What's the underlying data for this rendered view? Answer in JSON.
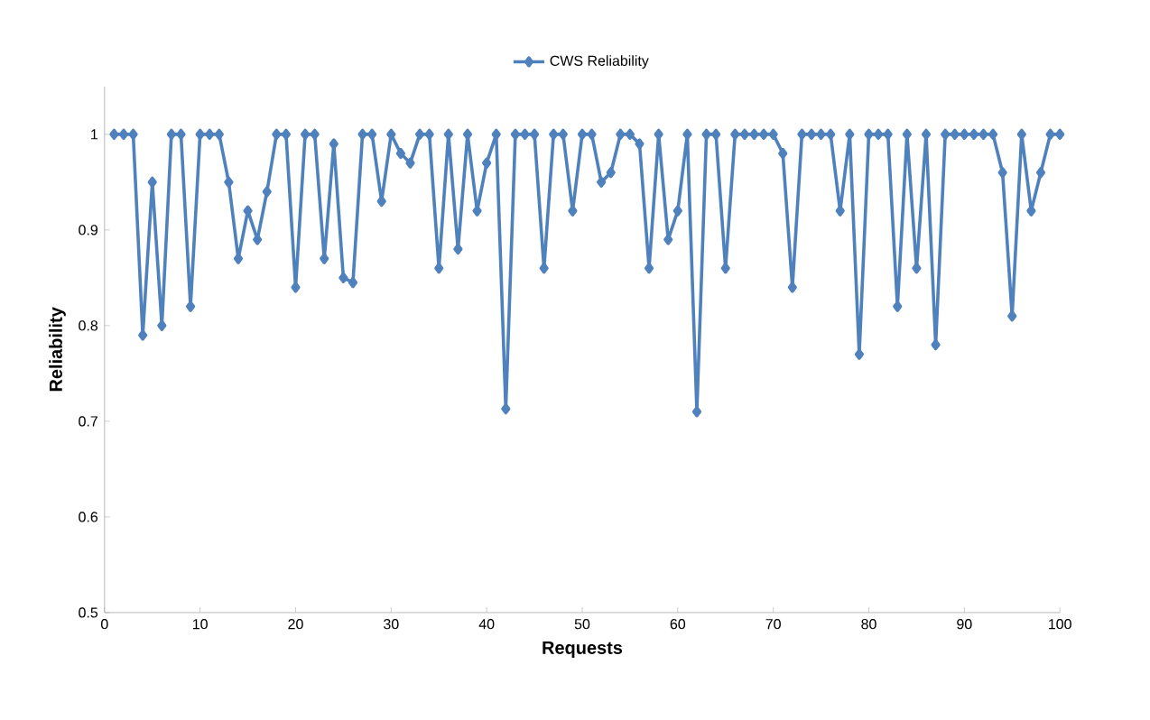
{
  "chart_data": {
    "type": "line",
    "xlabel": "Requests",
    "ylabel": "Reliability",
    "x": [
      1,
      2,
      3,
      4,
      5,
      6,
      7,
      8,
      9,
      10,
      11,
      12,
      13,
      14,
      15,
      16,
      17,
      18,
      19,
      20,
      21,
      22,
      23,
      24,
      25,
      26,
      27,
      28,
      29,
      30,
      31,
      32,
      33,
      34,
      35,
      36,
      37,
      38,
      39,
      40,
      41,
      42,
      43,
      44,
      45,
      46,
      47,
      48,
      49,
      50,
      51,
      52,
      53,
      54,
      55,
      56,
      57,
      58,
      59,
      60,
      61,
      62,
      63,
      64,
      65,
      66,
      67,
      68,
      69,
      70,
      71,
      72,
      73,
      74,
      75,
      76,
      77,
      78,
      79,
      80,
      81,
      82,
      83,
      84,
      85,
      86,
      87,
      88,
      89,
      90,
      91,
      92,
      93,
      94,
      95,
      96,
      97,
      98,
      99,
      100
    ],
    "series": [
      {
        "name": "CWS Reliability",
        "color": "#4f81bd",
        "values": [
          1,
          1,
          1,
          0.79,
          0.95,
          0.8,
          1,
          1,
          0.82,
          1,
          1,
          1,
          0.95,
          0.87,
          0.92,
          0.89,
          0.94,
          1,
          1,
          0.84,
          1,
          1,
          0.87,
          0.99,
          0.85,
          0.845,
          1,
          1,
          0.93,
          1,
          0.98,
          0.97,
          1,
          1,
          0.86,
          1,
          0.88,
          1,
          0.92,
          0.97,
          1,
          0.713,
          1,
          1,
          1,
          0.86,
          1,
          1,
          0.92,
          1,
          1,
          0.95,
          0.96,
          1,
          1,
          0.99,
          0.86,
          1,
          0.89,
          0.92,
          1,
          0.71,
          1,
          1,
          0.86,
          1,
          1,
          1,
          1,
          1,
          0.98,
          0.84,
          1,
          1,
          1,
          1,
          0.92,
          1,
          0.77,
          1,
          1,
          1,
          0.82,
          1,
          0.86,
          1,
          0.78,
          1,
          1,
          1,
          1,
          1,
          1,
          0.96,
          0.81,
          1,
          0.92,
          0.96,
          1,
          1
        ]
      }
    ],
    "xlim": [
      0,
      100
    ],
    "ylim": [
      0.5,
      1.05
    ],
    "xticks": [
      0,
      10,
      20,
      30,
      40,
      50,
      60,
      70,
      80,
      90,
      100
    ],
    "yticks": [
      {
        "value": 0.5,
        "label": "0.5"
      },
      {
        "value": 0.6,
        "label": "0.6"
      },
      {
        "value": 0.7,
        "label": "0.7"
      },
      {
        "value": 0.8,
        "label": "0.8"
      },
      {
        "value": 0.9,
        "label": "0.9"
      },
      {
        "value": 1,
        "label": "1"
      }
    ],
    "legend": "top",
    "marker": "diamond",
    "line_style": "solid",
    "grid": false
  }
}
